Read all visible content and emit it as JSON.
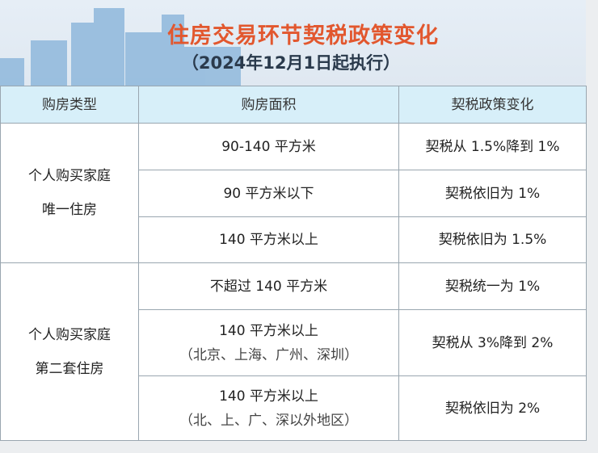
{
  "title": "住房交易环节契税政策变化",
  "subtitle": "（2024年12月1日起执行）",
  "colors": {
    "title": "#e2572e",
    "header_bg": "#d7eff9"
  },
  "table": {
    "headers": [
      "购房类型",
      "购房面积",
      "契税政策变化"
    ],
    "groups": [
      {
        "type_line1": "个人购买家庭",
        "type_line2": "唯一住房",
        "rows": [
          {
            "area": "90-140 平方米",
            "area_note": "",
            "policy": "契税从 1.5%降到 1%"
          },
          {
            "area": "90 平方米以下",
            "area_note": "",
            "policy": "契税依旧为 1%"
          },
          {
            "area": "140 平方米以上",
            "area_note": "",
            "policy": "契税依旧为 1.5%"
          }
        ]
      },
      {
        "type_line1": "个人购买家庭",
        "type_line2": "第二套住房",
        "rows": [
          {
            "area": "不超过 140 平方米",
            "area_note": "",
            "policy": "契税统一为 1%"
          },
          {
            "area": "140 平方米以上",
            "area_note": "（北京、上海、广州、深圳）",
            "policy": "契税从 3%降到 2%"
          },
          {
            "area": "140 平方米以上",
            "area_note": "（北、上、广、深以外地区）",
            "policy": "契税依旧为 2%"
          }
        ]
      }
    ]
  }
}
